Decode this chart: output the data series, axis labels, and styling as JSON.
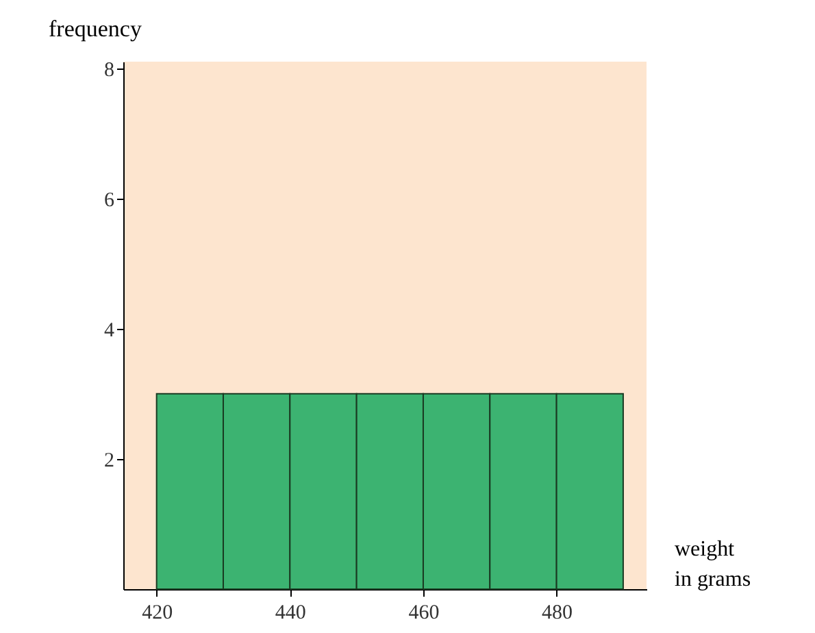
{
  "chart_data": {
    "type": "histogram",
    "xlabel": "weight in grams",
    "ylabel": "frequency",
    "bins": [
      420,
      430,
      440,
      450,
      460,
      470,
      480,
      490
    ],
    "values": [
      3,
      3,
      3,
      3,
      3,
      3,
      3
    ],
    "color": "#3cb371",
    "xlim": [
      415,
      493.5
    ],
    "ylim": [
      0,
      8.1
    ],
    "xticks": [
      420,
      440,
      460,
      480
    ],
    "yticks": [
      2,
      4,
      6,
      8
    ],
    "grid": false
  }
}
